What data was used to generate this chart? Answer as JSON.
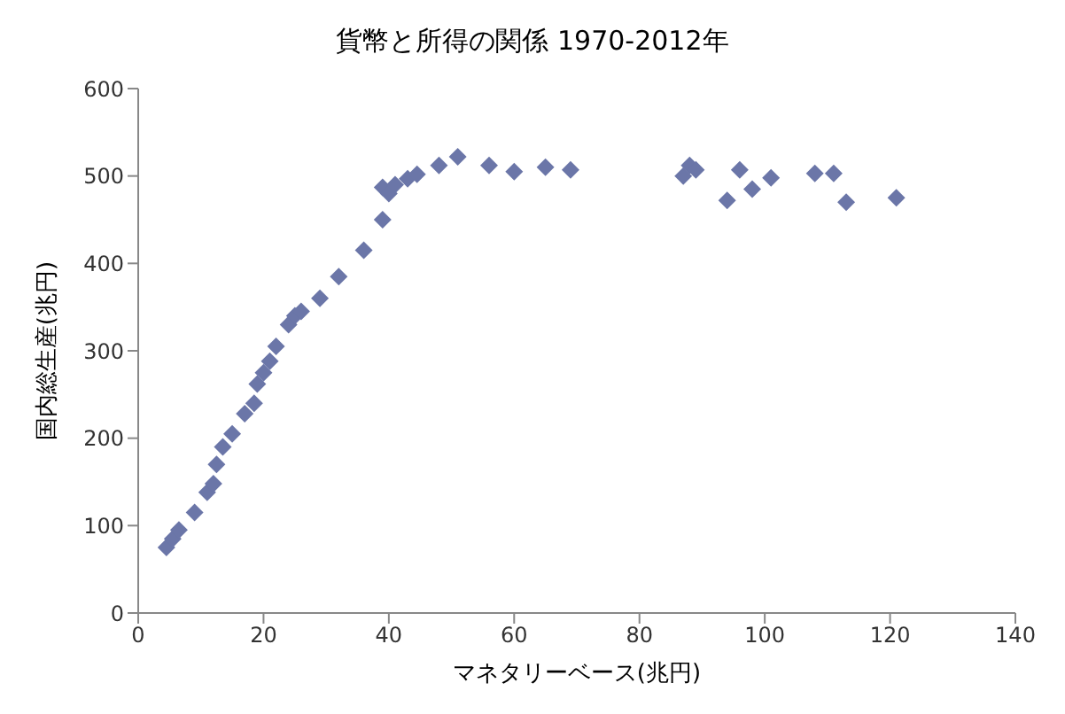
{
  "chart_data": {
    "type": "scatter",
    "title": "貨幣と所得の関係 1970-2012年",
    "xlabel": "マネタリーベース(兆円)",
    "ylabel": "国内総生産(兆円)",
    "marker": "diamond",
    "color": "#6b76a8",
    "x": [
      4.5,
      5.5,
      6.5,
      9,
      11,
      12,
      12.5,
      13.5,
      15,
      17,
      18.5,
      19,
      20,
      21,
      22,
      24,
      25,
      26,
      29,
      32,
      36,
      39,
      39,
      40,
      41,
      43,
      44.5,
      48,
      51,
      56,
      60,
      65,
      69,
      87,
      88,
      88.5,
      89,
      94,
      96,
      98,
      101,
      108,
      111,
      113,
      121
    ],
    "values": [
      75,
      85,
      95,
      115,
      138,
      148,
      170,
      190,
      205,
      228,
      240,
      262,
      275,
      288,
      305,
      330,
      340,
      345,
      360,
      385,
      415,
      450,
      487,
      480,
      490,
      497,
      502,
      512,
      522,
      512,
      505,
      510,
      507,
      500,
      512,
      null,
      507,
      472,
      507,
      485,
      498,
      503,
      503,
      470,
      475
    ],
    "xlim": [
      0,
      140
    ],
    "xticks": [
      0,
      20,
      40,
      60,
      80,
      100,
      120,
      140
    ],
    "ylim": [
      0,
      600
    ],
    "yticks": [
      0,
      100,
      200,
      300,
      400,
      500,
      600
    ]
  }
}
